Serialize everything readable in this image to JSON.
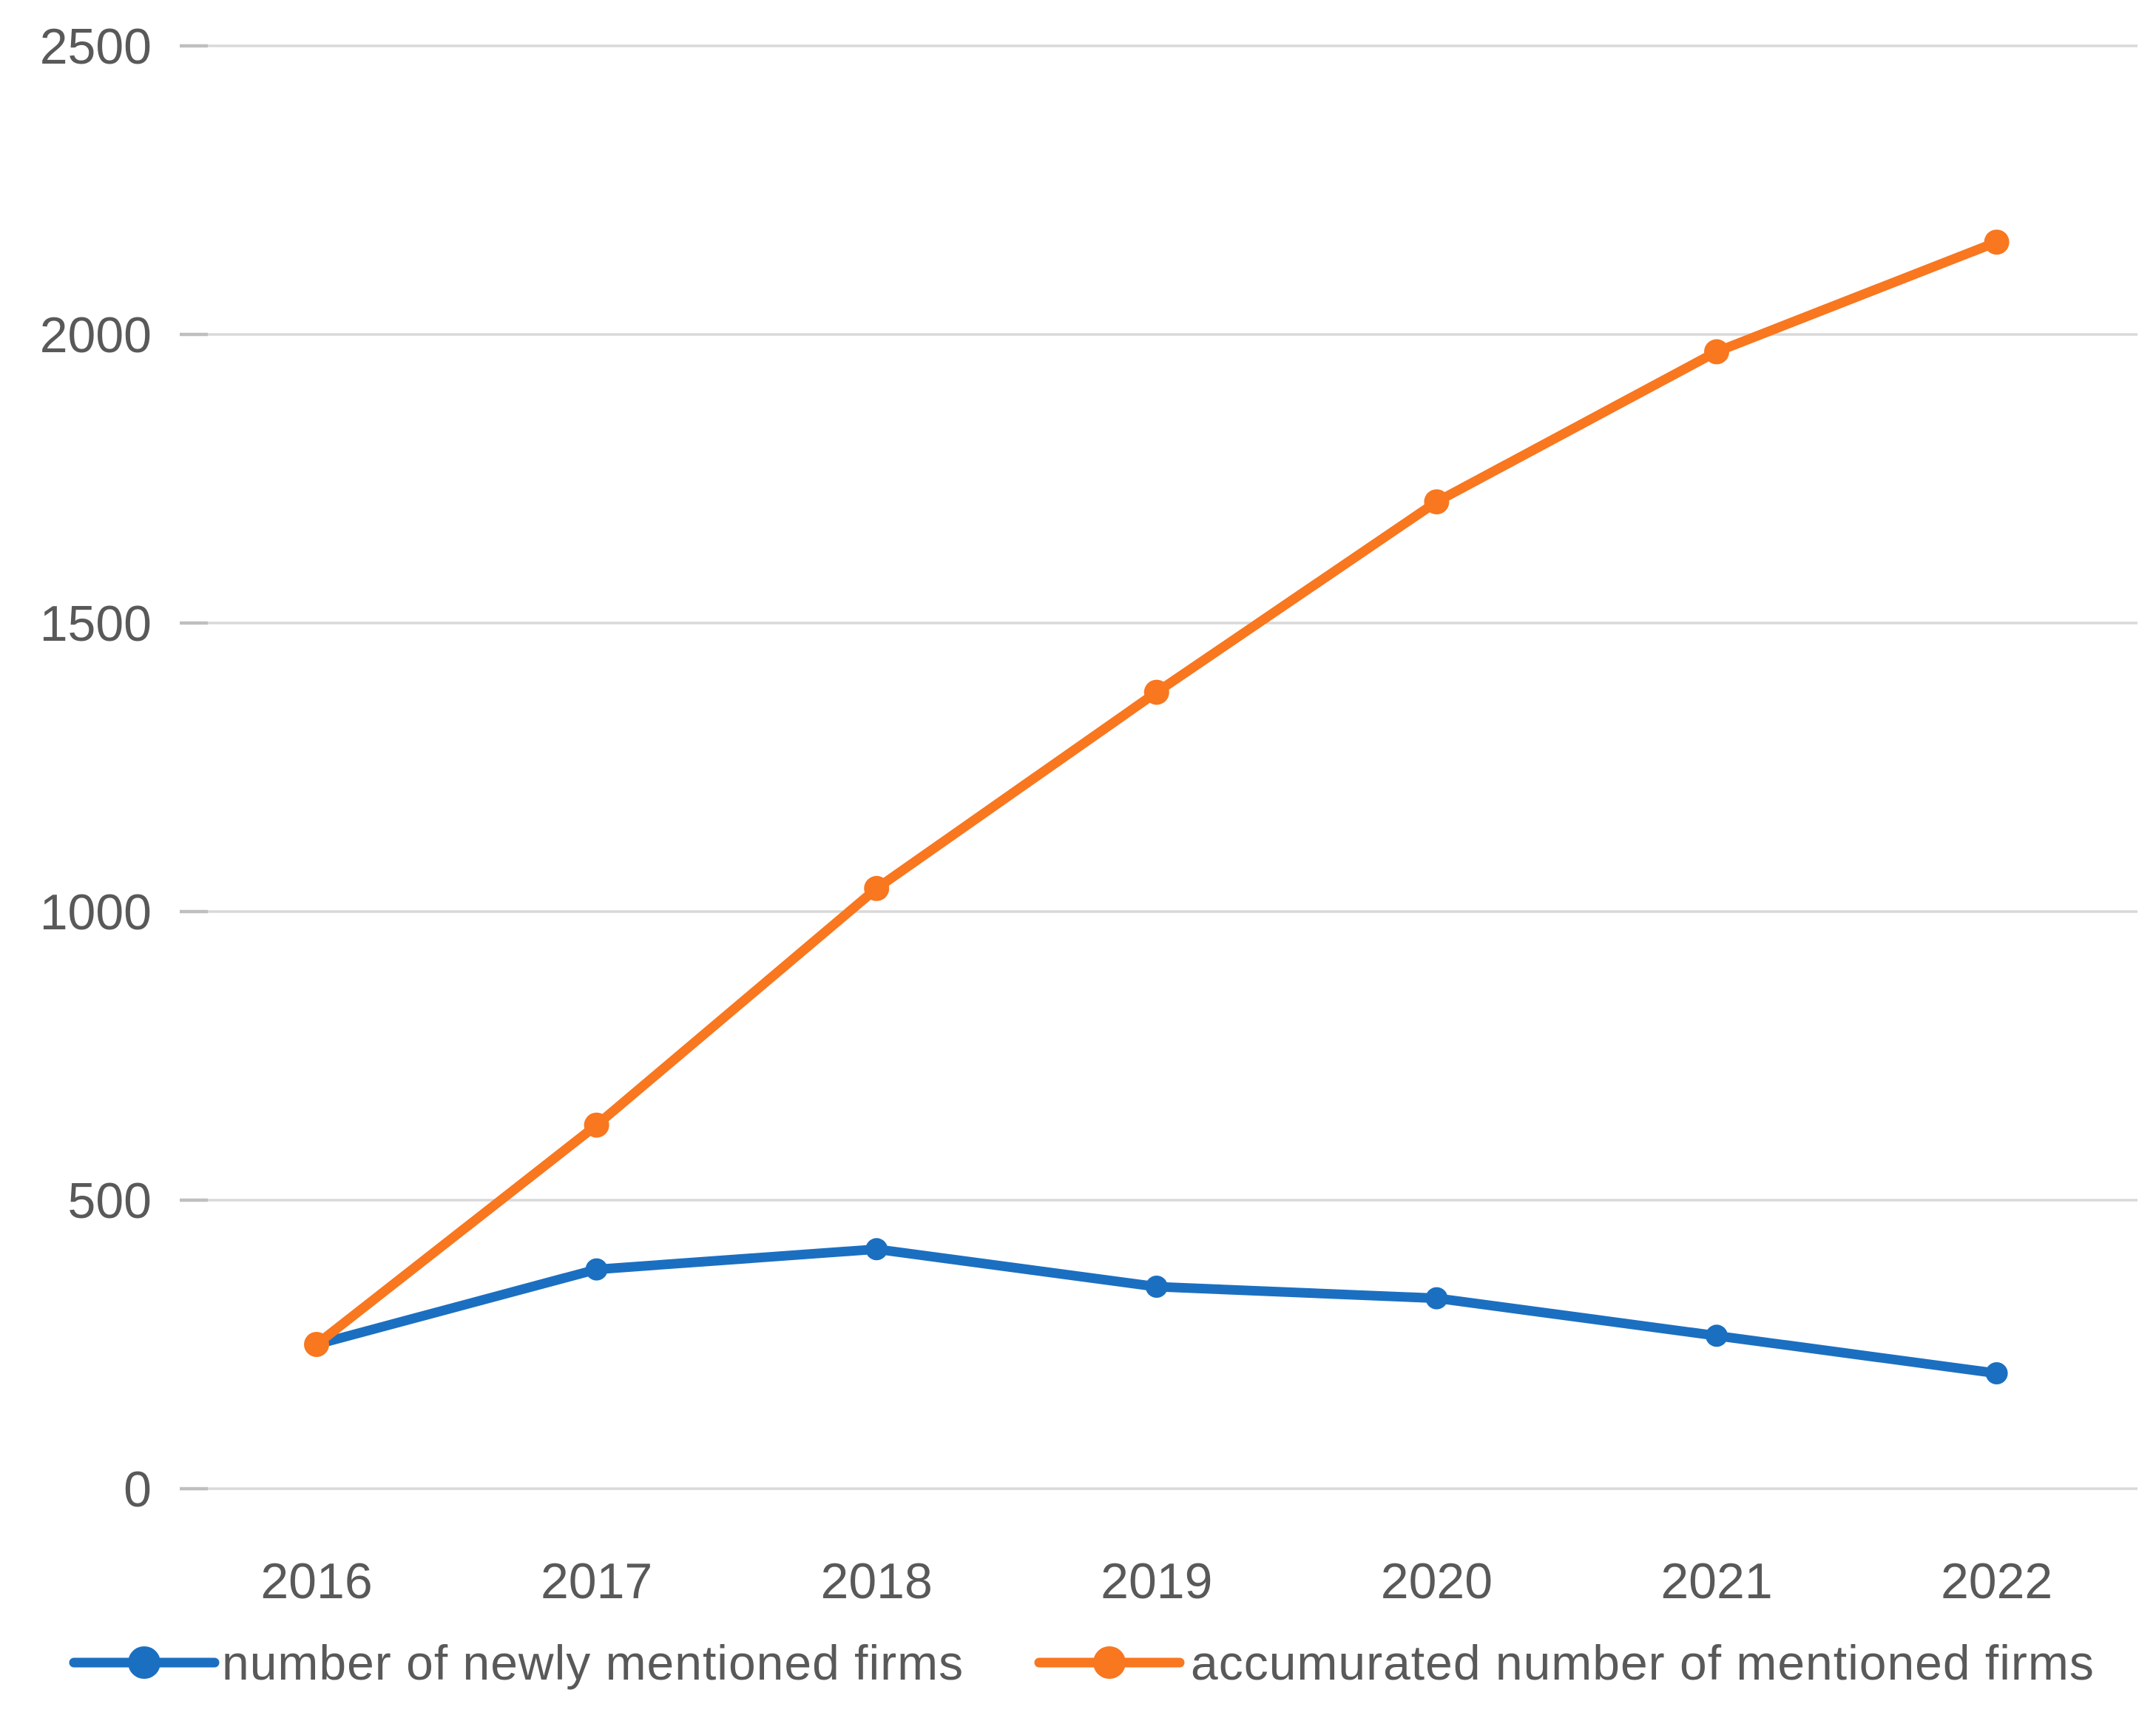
{
  "chart_data": {
    "type": "line",
    "title": "",
    "xlabel": "",
    "ylabel": "",
    "categories": [
      "2016",
      "2017",
      "2018",
      "2019",
      "2020",
      "2021",
      "2022"
    ],
    "series": [
      {
        "name": "number of newly mentioned firms",
        "color": "#1B6FC1",
        "marker": "circle",
        "values": [
          250,
          380,
          415,
          350,
          330,
          265,
          200
        ]
      },
      {
        "name": "accumurated number of mentioned firms",
        "color": "#F8771F",
        "marker": "circle",
        "values": [
          250,
          630,
          1040,
          1380,
          1710,
          1970,
          2160
        ]
      }
    ],
    "ylim": [
      0,
      2500
    ],
    "yticks": [
      0,
      500,
      1000,
      1500,
      2000,
      2500
    ],
    "grid": "horizontal-only",
    "legend_position": "bottom"
  },
  "colors": {
    "gridline": "#D9D9D9",
    "tick": "#BFBFBF",
    "axis_text": "#595959",
    "background": "#FFFFFF"
  }
}
